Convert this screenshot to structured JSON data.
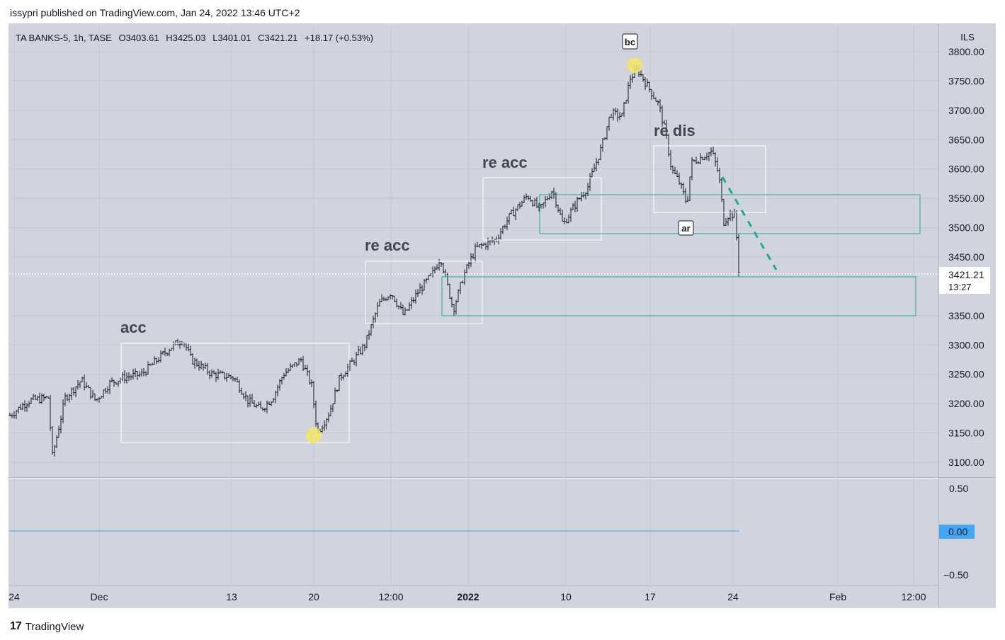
{
  "header": {
    "published": "issypri published on TradingView.com, Jan 24, 2022 13:46 UTC+2"
  },
  "legend": {
    "symbol": "TA BANKS-5, 1h, TASE",
    "open": "O3403.61",
    "high": "H3425.03",
    "low": "L3401.01",
    "close": "C3421.21",
    "change": "+18.17 (+0.53%)"
  },
  "price_axis": {
    "currency": "ILS",
    "ticks": [
      "3800.00",
      "3750.00",
      "3700.00",
      "3650.00",
      "3600.00",
      "3550.00",
      "3500.00",
      "3450.00",
      "3350.00",
      "3300.00",
      "3250.00",
      "3200.00",
      "3150.00",
      "3100.00"
    ],
    "last_price": "3421.21",
    "countdown": "13:27"
  },
  "osc_axis": {
    "ticks": [
      "0.50",
      "0.00",
      "−0.50"
    ],
    "zero_label": "0.00"
  },
  "time_axis": {
    "labels": [
      "24",
      "Dec",
      "13",
      "20",
      "12:00",
      "2022",
      "10",
      "17",
      "24",
      "Feb",
      "12:00"
    ]
  },
  "annotations": {
    "acc": "acc",
    "re_acc_1": "re acc",
    "re_acc_2": "re acc",
    "re_dis": "re dis",
    "bc": "bc",
    "ar": "ar"
  },
  "footer": {
    "brand": "TradingView",
    "logo_glyph": "17"
  },
  "colors": {
    "background": "#d1d4dc",
    "bars": "#131722",
    "box_white": "#ffffff",
    "box_teal": "#26a69a",
    "trend_dash": "#26a69a",
    "highlight": "#f5e663",
    "osc_line": "#42a5f5",
    "zero_badge": "#42a5f5"
  },
  "chart_data": {
    "type": "ohlc",
    "symbol": "TA BANKS-5",
    "interval": "1h",
    "y_range": [
      3075,
      3825
    ],
    "points": [
      {
        "t": "2021-11-24",
        "v": 3175
      },
      {
        "t": "2021-11-25",
        "v": 3210
      },
      {
        "t": "2021-11-26",
        "v": 3195
      },
      {
        "t": "2021-11-28",
        "v": 3100
      },
      {
        "t": "2021-11-29",
        "v": 3200
      },
      {
        "t": "2021-11-30",
        "v": 3240
      },
      {
        "t": "2021-12-01",
        "v": 3210
      },
      {
        "t": "2021-12-02",
        "v": 3240
      },
      {
        "t": "2021-12-05",
        "v": 3230
      },
      {
        "t": "2021-12-06",
        "v": 3260
      },
      {
        "t": "2021-12-07",
        "v": 3300
      },
      {
        "t": "2021-12-08",
        "v": 3310
      },
      {
        "t": "2021-12-09",
        "v": 3275
      },
      {
        "t": "2021-12-12",
        "v": 3240
      },
      {
        "t": "2021-12-13",
        "v": 3240
      },
      {
        "t": "2021-12-14",
        "v": 3230
      },
      {
        "t": "2021-12-15",
        "v": 3190
      },
      {
        "t": "2021-12-16",
        "v": 3210
      },
      {
        "t": "2021-12-19",
        "v": 3270
      },
      {
        "t": "2021-12-20",
        "v": 3150
      },
      {
        "t": "2021-12-21",
        "v": 3230
      },
      {
        "t": "2021-12-22",
        "v": 3290
      },
      {
        "t": "2021-12-23",
        "v": 3350
      },
      {
        "t": "2021-12-26",
        "v": 3370
      },
      {
        "t": "2021-12-27",
        "v": 3400
      },
      {
        "t": "2021-12-28",
        "v": 3450
      },
      {
        "t": "2021-12-29",
        "v": 3360
      },
      {
        "t": "2021-12-30",
        "v": 3430
      },
      {
        "t": "2022-01-02",
        "v": 3480
      },
      {
        "t": "2022-01-03",
        "v": 3510
      },
      {
        "t": "2022-01-04",
        "v": 3540
      },
      {
        "t": "2022-01-05",
        "v": 3560
      },
      {
        "t": "2022-01-06",
        "v": 3570
      },
      {
        "t": "2022-01-09",
        "v": 3520
      },
      {
        "t": "2022-01-10",
        "v": 3540
      },
      {
        "t": "2022-01-11",
        "v": 3600
      },
      {
        "t": "2022-01-12",
        "v": 3690
      },
      {
        "t": "2022-01-13",
        "v": 3700
      },
      {
        "t": "2022-01-14",
        "v": 3770
      },
      {
        "t": "2022-01-16",
        "v": 3740
      },
      {
        "t": "2022-01-17",
        "v": 3700
      },
      {
        "t": "2022-01-18",
        "v": 3580
      },
      {
        "t": "2022-01-19",
        "v": 3560
      },
      {
        "t": "2022-01-20",
        "v": 3620
      },
      {
        "t": "2022-01-21",
        "v": 3600
      },
      {
        "t": "2022-01-23",
        "v": 3520
      },
      {
        "t": "2022-01-24",
        "v": 3421.21
      }
    ],
    "oscillator": {
      "value": 0.0,
      "y_range": [
        -0.5,
        0.5
      ]
    }
  }
}
